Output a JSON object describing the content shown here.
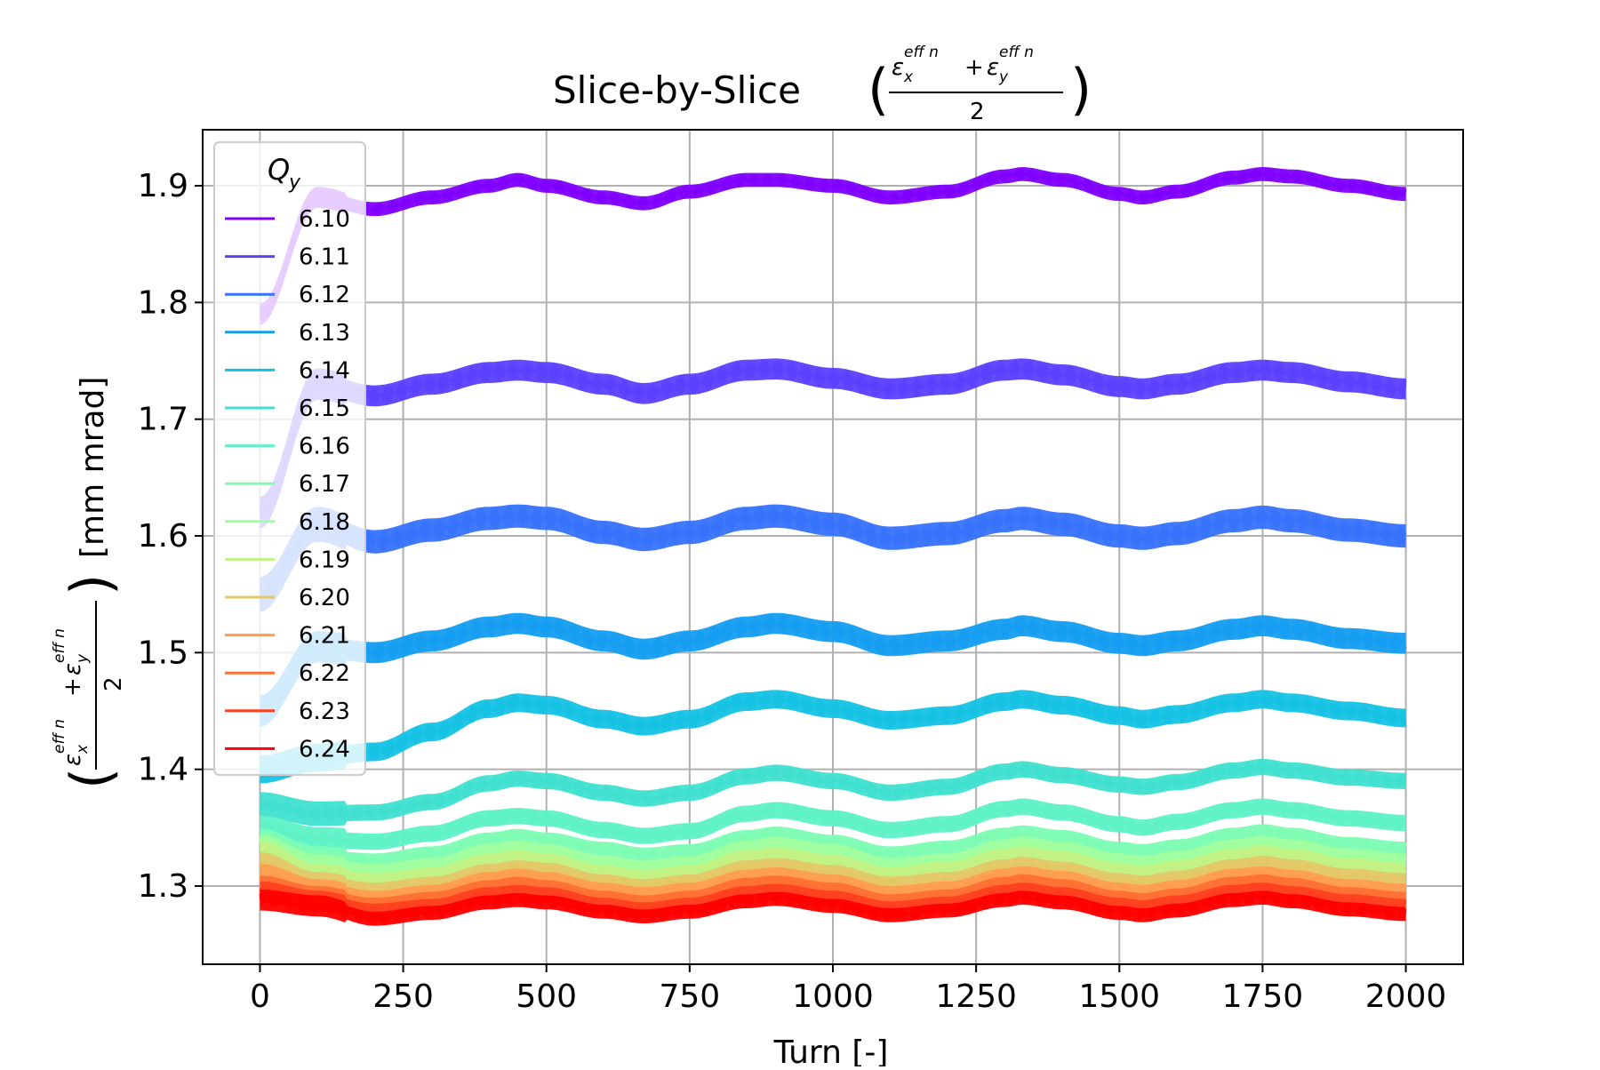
{
  "chart_data": {
    "type": "line",
    "title_prefix": "Slice-by-Slice",
    "title": "Slice-by-Slice ((ε_x^eff n + ε_y^eff n)/2)",
    "ylabel_unit": "[mm mrad]",
    "ylabel": "((ε_x^eff n + ε_y^eff n)/2) [mm mrad]",
    "xlabel": "Turn [-]",
    "formula": {
      "eps": "ε",
      "sub_x": "x",
      "sub_y": "y",
      "sup": "eff n",
      "plus": "+",
      "den": "2",
      "open": "(",
      "close": ")"
    },
    "xlim": [
      -100,
      2100
    ],
    "ylim": [
      1.233,
      1.948
    ],
    "xticks": [
      0,
      250,
      500,
      750,
      1000,
      1250,
      1500,
      1750,
      2000
    ],
    "yticks": [
      1.3,
      1.4,
      1.5,
      1.6,
      1.7,
      1.8,
      1.9
    ],
    "ytick_labels": [
      "1.3",
      "1.4",
      "1.5",
      "1.6",
      "1.7",
      "1.8",
      "1.9"
    ],
    "grid": true,
    "legend": {
      "title": "Q_y",
      "title_base": "Q",
      "title_sub": "y",
      "position": "top-left"
    },
    "x": [
      0,
      100,
      200,
      300,
      400,
      450,
      500,
      600,
      670,
      750,
      850,
      900,
      1000,
      1100,
      1200,
      1300,
      1330,
      1400,
      1500,
      1540,
      1600,
      1700,
      1750,
      1800,
      1900,
      2000
    ],
    "series": [
      {
        "name": "6.10",
        "color": "#8000ff",
        "band": 0.012,
        "values": [
          1.79,
          1.89,
          1.88,
          1.89,
          1.9,
          1.905,
          1.9,
          1.89,
          1.885,
          1.895,
          1.905,
          1.905,
          1.9,
          1.89,
          1.895,
          1.908,
          1.91,
          1.905,
          1.893,
          1.89,
          1.895,
          1.907,
          1.91,
          1.908,
          1.9,
          1.893
        ]
      },
      {
        "name": "6.11",
        "color": "#5a40ff",
        "band": 0.018,
        "values": [
          1.62,
          1.73,
          1.72,
          1.73,
          1.74,
          1.742,
          1.74,
          1.73,
          1.722,
          1.73,
          1.742,
          1.743,
          1.735,
          1.726,
          1.73,
          1.742,
          1.743,
          1.738,
          1.728,
          1.726,
          1.73,
          1.74,
          1.742,
          1.74,
          1.732,
          1.726
        ]
      },
      {
        "name": "6.12",
        "color": "#3672fb",
        "band": 0.02,
        "values": [
          1.55,
          1.61,
          1.595,
          1.605,
          1.615,
          1.617,
          1.615,
          1.603,
          1.597,
          1.603,
          1.615,
          1.617,
          1.61,
          1.598,
          1.602,
          1.613,
          1.615,
          1.61,
          1.6,
          1.598,
          1.602,
          1.613,
          1.616,
          1.613,
          1.605,
          1.6
        ]
      },
      {
        "name": "6.13",
        "color": "#149df1",
        "band": 0.018,
        "values": [
          1.45,
          1.505,
          1.5,
          1.51,
          1.522,
          1.525,
          1.522,
          1.51,
          1.503,
          1.51,
          1.522,
          1.525,
          1.518,
          1.506,
          1.51,
          1.52,
          1.523,
          1.518,
          1.508,
          1.506,
          1.51,
          1.52,
          1.523,
          1.52,
          1.512,
          1.508
        ]
      },
      {
        "name": "6.14",
        "color": "#15c2e4",
        "band": 0.016,
        "values": [
          1.4,
          1.41,
          1.415,
          1.432,
          1.452,
          1.457,
          1.455,
          1.443,
          1.437,
          1.443,
          1.458,
          1.46,
          1.452,
          1.442,
          1.446,
          1.458,
          1.46,
          1.455,
          1.446,
          1.443,
          1.447,
          1.457,
          1.46,
          1.457,
          1.45,
          1.444
        ]
      },
      {
        "name": "6.15",
        "color": "#40e0d0",
        "band": 0.014,
        "values": [
          1.37,
          1.362,
          1.363,
          1.372,
          1.388,
          1.392,
          1.39,
          1.38,
          1.375,
          1.38,
          1.394,
          1.397,
          1.39,
          1.38,
          1.385,
          1.398,
          1.4,
          1.395,
          1.387,
          1.385,
          1.389,
          1.399,
          1.402,
          1.399,
          1.393,
          1.39
        ]
      },
      {
        "name": "6.16",
        "color": "#5ef2c6",
        "band": 0.014,
        "values": [
          1.35,
          1.34,
          1.338,
          1.345,
          1.358,
          1.36,
          1.358,
          1.348,
          1.343,
          1.347,
          1.362,
          1.365,
          1.358,
          1.348,
          1.353,
          1.366,
          1.368,
          1.363,
          1.353,
          1.35,
          1.355,
          1.365,
          1.368,
          1.365,
          1.358,
          1.354
        ]
      },
      {
        "name": "6.17",
        "color": "#7efcb4",
        "band": 0.012,
        "values": [
          1.34,
          1.325,
          1.322,
          1.328,
          1.34,
          1.343,
          1.34,
          1.332,
          1.327,
          1.33,
          1.342,
          1.345,
          1.338,
          1.328,
          1.333,
          1.344,
          1.346,
          1.342,
          1.332,
          1.33,
          1.334,
          1.344,
          1.347,
          1.344,
          1.336,
          1.332
        ]
      },
      {
        "name": "6.18",
        "color": "#a0ff9e",
        "band": 0.012,
        "values": [
          1.335,
          1.318,
          1.313,
          1.318,
          1.33,
          1.333,
          1.33,
          1.32,
          1.316,
          1.32,
          1.333,
          1.336,
          1.33,
          1.318,
          1.322,
          1.334,
          1.336,
          1.332,
          1.322,
          1.32,
          1.324,
          1.334,
          1.337,
          1.334,
          1.326,
          1.322
        ]
      },
      {
        "name": "6.19",
        "color": "#c2f284",
        "band": 0.012,
        "values": [
          1.33,
          1.31,
          1.305,
          1.31,
          1.322,
          1.325,
          1.322,
          1.312,
          1.308,
          1.312,
          1.325,
          1.327,
          1.321,
          1.31,
          1.315,
          1.326,
          1.328,
          1.324,
          1.314,
          1.312,
          1.316,
          1.326,
          1.329,
          1.326,
          1.318,
          1.314
        ]
      },
      {
        "name": "6.20",
        "color": "#e4c868",
        "band": 0.012,
        "values": [
          1.32,
          1.303,
          1.297,
          1.302,
          1.313,
          1.316,
          1.314,
          1.304,
          1.3,
          1.304,
          1.316,
          1.318,
          1.312,
          1.302,
          1.306,
          1.317,
          1.319,
          1.315,
          1.305,
          1.303,
          1.307,
          1.317,
          1.32,
          1.317,
          1.309,
          1.305
        ]
      },
      {
        "name": "6.21",
        "color": "#ff9d50",
        "band": 0.012,
        "values": [
          1.31,
          1.297,
          1.29,
          1.295,
          1.306,
          1.309,
          1.306,
          1.297,
          1.293,
          1.297,
          1.308,
          1.31,
          1.304,
          1.294,
          1.298,
          1.309,
          1.311,
          1.307,
          1.297,
          1.295,
          1.299,
          1.309,
          1.311,
          1.308,
          1.3,
          1.296
        ]
      },
      {
        "name": "6.22",
        "color": "#ff7034",
        "band": 0.012,
        "values": [
          1.3,
          1.291,
          1.284,
          1.289,
          1.299,
          1.302,
          1.299,
          1.29,
          1.286,
          1.29,
          1.301,
          1.303,
          1.297,
          1.287,
          1.291,
          1.302,
          1.304,
          1.3,
          1.29,
          1.288,
          1.292,
          1.302,
          1.304,
          1.301,
          1.293,
          1.289
        ]
      },
      {
        "name": "6.23",
        "color": "#ff4020",
        "band": 0.012,
        "values": [
          1.295,
          1.287,
          1.279,
          1.283,
          1.293,
          1.295,
          1.293,
          1.284,
          1.28,
          1.284,
          1.294,
          1.296,
          1.29,
          1.281,
          1.285,
          1.295,
          1.297,
          1.293,
          1.284,
          1.282,
          1.286,
          1.295,
          1.297,
          1.294,
          1.287,
          1.283
        ]
      },
      {
        "name": "6.24",
        "color": "#ff0000",
        "band": 0.012,
        "values": [
          1.288,
          1.283,
          1.272,
          1.277,
          1.286,
          1.288,
          1.286,
          1.278,
          1.274,
          1.278,
          1.287,
          1.289,
          1.283,
          1.275,
          1.279,
          1.288,
          1.29,
          1.286,
          1.277,
          1.275,
          1.279,
          1.288,
          1.29,
          1.287,
          1.28,
          1.276
        ]
      }
    ]
  }
}
